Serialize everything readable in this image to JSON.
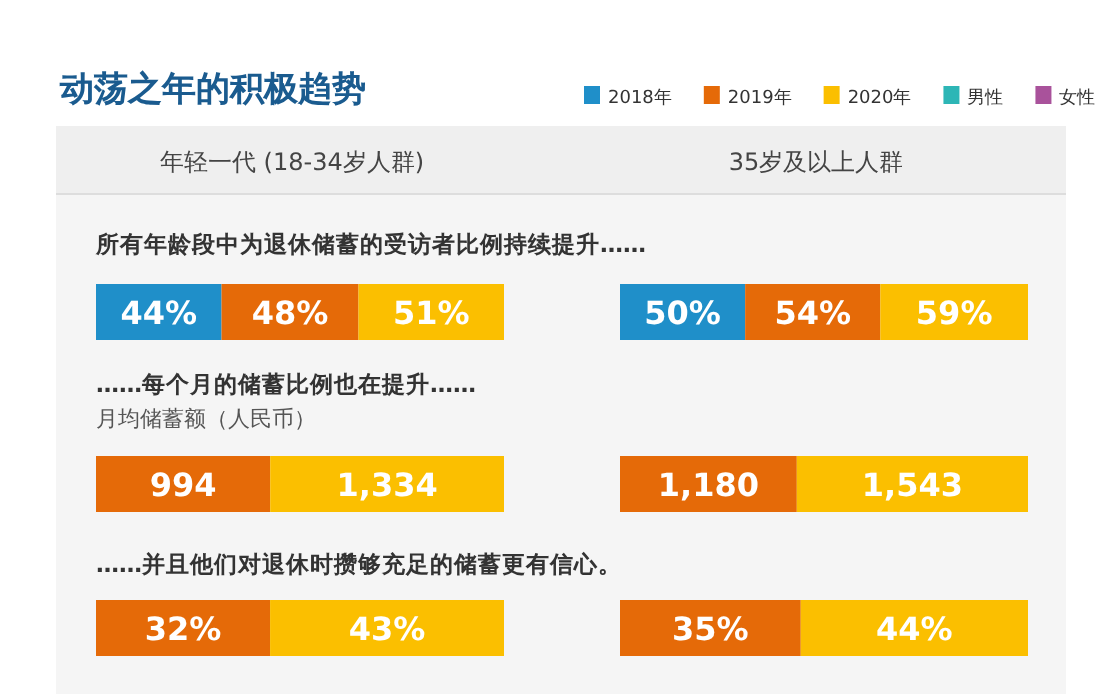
{
  "chart_data": [
    {
      "type": "bar",
      "orientation": "horizontal",
      "stacked": true,
      "title": "动荡之年的积极趋势",
      "subtitle": "年轻一代 (18-34岁人群)",
      "annotations": [
        "所有年龄段中为退休储蓄的受访者比例持续提升……"
      ],
      "legend": "top right",
      "categories": [
        null
      ],
      "series": [
        {
          "name": "2018年",
          "color": "#1f8fc9",
          "values": [
            44
          ],
          "value_labels": [
            "44%"
          ]
        },
        {
          "name": "2019年",
          "color": "#e56a08",
          "values": [
            48
          ],
          "value_labels": [
            "48%"
          ]
        },
        {
          "name": "2020年",
          "color": "#fbbf00",
          "values": [
            51
          ],
          "value_labels": [
            "51%"
          ]
        },
        {
          "name": "男性",
          "color": "#2db6b6",
          "values": [
            null
          ]
        },
        {
          "name": "女性",
          "color": "#a9529b",
          "values": [
            null
          ]
        }
      ]
    },
    {
      "type": "bar",
      "orientation": "horizontal",
      "stacked": true,
      "subtitle": "35岁及以上人群",
      "categories": [
        null
      ],
      "series": [
        {
          "color": "#1f8fc9",
          "values": [
            50
          ],
          "value_labels": [
            "50%"
          ]
        },
        {
          "color": "#e56a08",
          "values": [
            54
          ],
          "value_labels": [
            "54%"
          ]
        },
        {
          "color": "#fbbf00",
          "values": [
            59
          ],
          "value_labels": [
            "59%"
          ]
        }
      ]
    },
    {
      "type": "bar",
      "orientation": "horizontal",
      "stacked": true,
      "annotations": [
        "……每个月的储蓄比例也在提升……",
        "月均储蓄额（人民币）"
      ],
      "categories": [
        null
      ],
      "series": [
        {
          "color": "#e56a08",
          "values": [
            994
          ],
          "value_labels": [
            "994"
          ]
        },
        {
          "color": "#fbbf00",
          "values": [
            1334
          ],
          "value_labels": [
            "1,334"
          ]
        }
      ]
    },
    {
      "type": "bar",
      "orientation": "horizontal",
      "stacked": true,
      "categories": [
        null
      ],
      "series": [
        {
          "color": "#e56a08",
          "values": [
            1180
          ],
          "value_labels": [
            "1,180"
          ]
        },
        {
          "color": "#fbbf00",
          "values": [
            1543
          ],
          "value_labels": [
            "1,543"
          ]
        }
      ]
    },
    {
      "type": "bar",
      "orientation": "horizontal",
      "stacked": true,
      "annotations": [
        "……并且他们对退休时攒够充足的储蓄更有信心。"
      ],
      "categories": [
        null
      ],
      "series": [
        {
          "color": "#e56a08",
          "values": [
            32
          ],
          "value_labels": [
            "32%"
          ]
        },
        {
          "color": "#fbbf00",
          "values": [
            43
          ],
          "value_labels": [
            "43%"
          ]
        }
      ]
    },
    {
      "type": "bar",
      "orientation": "horizontal",
      "stacked": true,
      "categories": [
        null
      ],
      "series": [
        {
          "color": "#e56a08",
          "values": [
            35
          ],
          "value_labels": [
            "35%"
          ]
        },
        {
          "color": "#fbbf00",
          "values": [
            44
          ],
          "value_labels": [
            "44%"
          ]
        }
      ]
    }
  ]
}
